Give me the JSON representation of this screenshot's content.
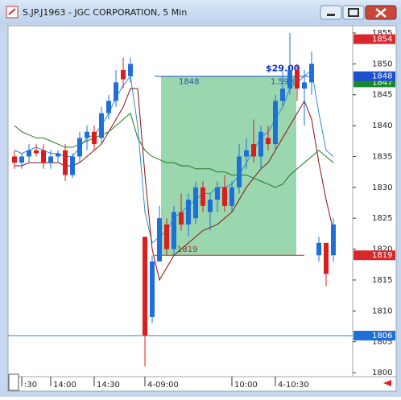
{
  "window": {
    "title": "S.JP.J1963 - JGC CORPORATION, 5 Min"
  },
  "chart_data": {
    "type": "candlestick",
    "categories": [
      null,
      ":30",
      null,
      null,
      null,
      "14:00",
      null,
      null,
      null,
      null,
      null,
      "14:30",
      null,
      null,
      null,
      null,
      null,
      null,
      "4-09:00",
      null,
      null,
      null,
      null,
      null,
      null,
      null,
      null,
      null,
      null,
      null,
      "10:00",
      null,
      null,
      null,
      null,
      null,
      "4-10:30",
      null,
      null,
      null,
      null,
      null,
      null,
      null,
      null
    ],
    "open": [
      1835,
      1834,
      1835,
      1836,
      1836,
      1834,
      1835,
      1836,
      1832,
      1835,
      1838,
      1839,
      1838,
      1842,
      1844,
      1849,
      1848,
      null,
      1822,
      1809,
      1818,
      1824,
      1820,
      1826,
      1824,
      1825,
      1830,
      1826,
      1828,
      1830,
      1827,
      1830,
      1835,
      1837,
      1835,
      1838,
      1837,
      1844,
      1846,
      1849,
      1846,
      1847,
      1819,
      1821,
      1819
    ],
    "high": [
      1836,
      1835.5,
      1837,
      1837,
      1837,
      1836,
      1836,
      1837,
      1835.5,
      1839,
      1840,
      1840,
      1843,
      1845,
      1849,
      1851,
      1851,
      null,
      1822,
      1819,
      1827,
      1825,
      1827,
      1829,
      1829,
      1831,
      1831,
      1829,
      1831,
      1832,
      1831,
      1837,
      1838,
      1841,
      1840,
      1840,
      1845,
      1849,
      1855,
      1850,
      1849,
      1852,
      1822,
      1821,
      1825
    ],
    "low": [
      1833,
      1833,
      1834,
      1835,
      1833,
      1833,
      1834,
      1831,
      1831.5,
      1834,
      1836,
      1836,
      1837,
      1841,
      1843,
      1846,
      1847,
      null,
      1801,
      1808,
      1818,
      1819,
      1819,
      1823,
      1822,
      1824,
      1826,
      1823,
      1826,
      1826,
      1826,
      1829,
      1833,
      1834,
      1833,
      1836,
      1836,
      1843,
      1845,
      1844,
      1840,
      1845,
      1818,
      1814,
      1818
    ],
    "close": [
      1834,
      1835,
      1836,
      1835.5,
      1834,
      1835,
      1835.5,
      1832,
      1835,
      1838,
      1839,
      1837,
      1842,
      1844,
      1847,
      1847.5,
      1850,
      null,
      1806,
      1818,
      1825,
      1820,
      1826,
      1824,
      1828,
      1830,
      1827,
      1828,
      1830,
      1827,
      1830,
      1835,
      1836,
      1835,
      1839,
      1837,
      1844,
      1846,
      1849,
      1846,
      1847,
      1850,
      1821,
      1816,
      1824
    ],
    "up_color": "#1f6fd8",
    "down_color": "#d81e1e",
    "overlays": [
      {
        "color": "#2a8fd0",
        "values": [
          1836,
          1835.5,
          1836,
          1836.5,
          1836,
          1835.5,
          1835.5,
          1835,
          1835,
          1836.5,
          1838,
          1838.5,
          1840,
          1842,
          1844.5,
          1846.5,
          1848,
          1840,
          1826,
          1821,
          1822,
          1823,
          1825,
          1826,
          1827,
          1828,
          1829,
          1829,
          1830,
          1830,
          1830.5,
          1832,
          1834,
          1836,
          1838,
          1839,
          1841,
          1843,
          1846,
          1847,
          1848,
          1849,
          1842,
          1836,
          1835
        ]
      },
      {
        "color": "#8b1010",
        "values": [
          1833.5,
          1833.5,
          1834,
          1834,
          1834,
          1834,
          1834,
          1833.5,
          1833.5,
          1834,
          1835,
          1836,
          1837,
          1839,
          1841,
          1843,
          1846,
          1846,
          1832,
          1820,
          1815,
          1817,
          1819,
          1820,
          1821,
          1822,
          1823,
          1823.5,
          1824,
          1825,
          1826,
          1828,
          1830,
          1831.5,
          1833,
          1834,
          1836,
          1838,
          1840,
          1842,
          1844,
          1841,
          1834,
          1828,
          1823
        ]
      },
      {
        "color": "#1c7a1c",
        "values": [
          1840,
          1839,
          1838.5,
          1838,
          1838,
          1837.5,
          1837,
          1836.5,
          1836.5,
          1837,
          1837.5,
          1838,
          1838.5,
          1839,
          1840,
          1841,
          1842,
          1838,
          1836,
          1835,
          1834.5,
          1834,
          1834,
          1833.5,
          1833.5,
          1833,
          1833,
          1833,
          1832.5,
          1832.5,
          1832,
          1832,
          1832,
          1831.5,
          1831,
          1830.5,
          1830,
          1830.5,
          1832,
          1833,
          1834,
          1835,
          1836,
          1835,
          1834
        ]
      }
    ],
    "box": {
      "high": 1848,
      "low": 1819,
      "change": "$29.00",
      "percent": "1.59%",
      "color": "#8fd3a6"
    },
    "levels": [
      {
        "value": 1806,
        "color": "#1b8db5"
      }
    ],
    "price_tags": [
      {
        "value": 1854,
        "color": "#d8262b"
      },
      {
        "value": 1847,
        "color": "#168a2c"
      },
      {
        "value": 1848,
        "color": "#1f4fd0"
      },
      {
        "value": 1819,
        "color": "#d8262b"
      },
      {
        "value": 1806,
        "color": "#1f6fd8"
      }
    ],
    "ylim": [
      1799.35,
      1856.17
    ],
    "yticks": [
      1800,
      1805,
      1810,
      1815,
      1820,
      1825,
      1830,
      1835,
      1840,
      1845,
      1850,
      1855
    ]
  }
}
